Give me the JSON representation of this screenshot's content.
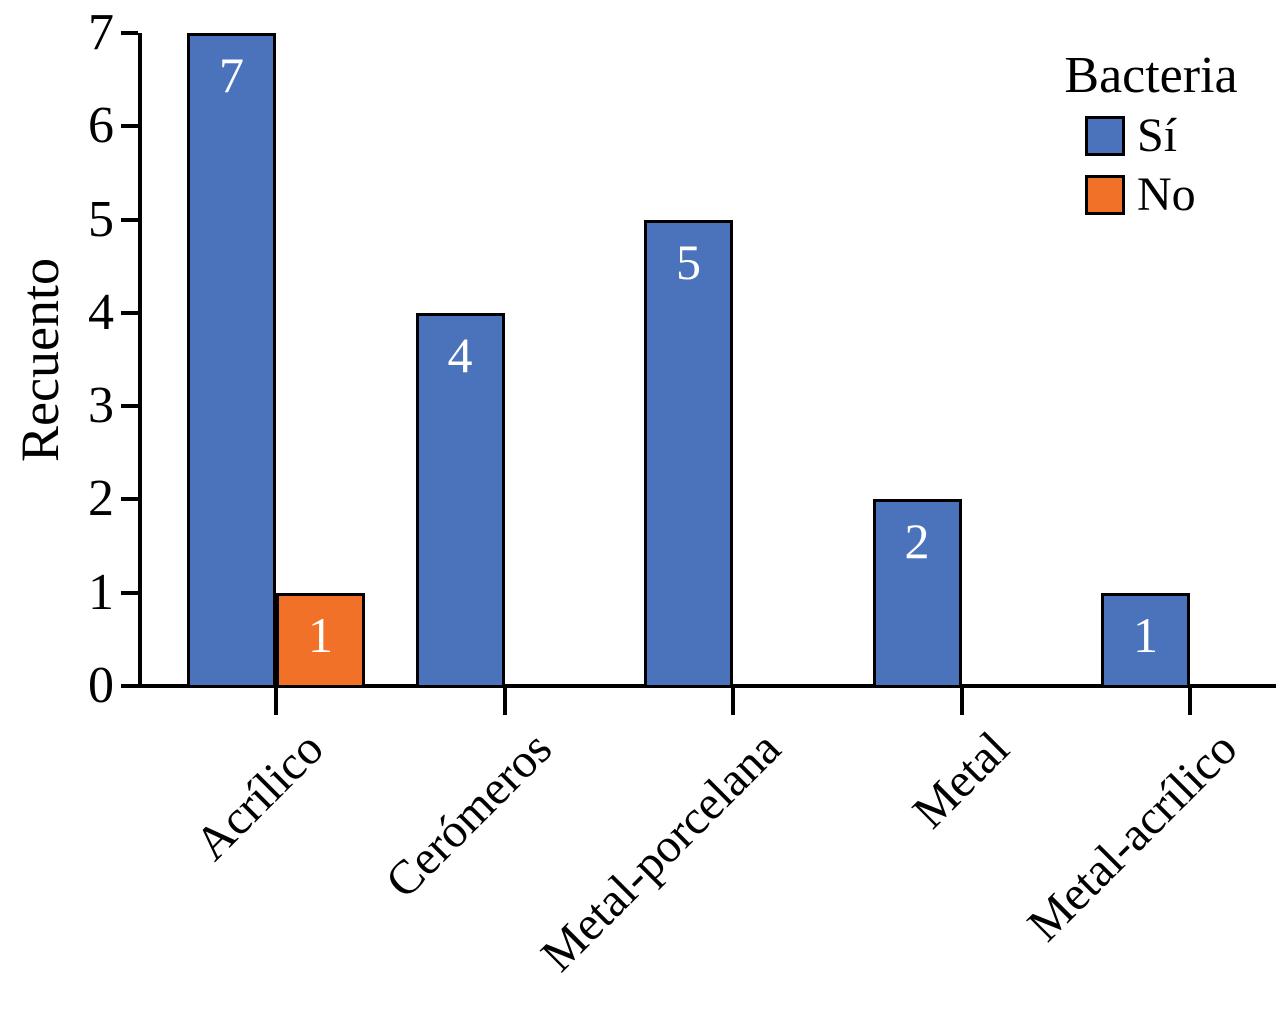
{
  "chart_data": {
    "type": "bar",
    "title": "",
    "xlabel": "",
    "ylabel": "Recuento",
    "categories": [
      "Acrílico",
      "Cerómeros",
      "Metal-porcelana",
      "Metal",
      "Metal-acrílico"
    ],
    "series": [
      {
        "name": "Sí",
        "color": "#4A73BB",
        "values": [
          7,
          4,
          5,
          2,
          1
        ]
      },
      {
        "name": "No",
        "color": "#F07127",
        "values": [
          1,
          0,
          0,
          0,
          0
        ]
      }
    ],
    "yticks": [
      0,
      1,
      2,
      3,
      4,
      5,
      6,
      7
    ],
    "ylim": [
      0,
      7
    ],
    "grid": false,
    "bar_value_labels_shown": true,
    "bar_value_label_color": "#ffffff",
    "axis_color": "#000000",
    "legend": {
      "title": "Bacteria",
      "position": "top-right",
      "entries": [
        "Sí",
        "No"
      ]
    }
  }
}
